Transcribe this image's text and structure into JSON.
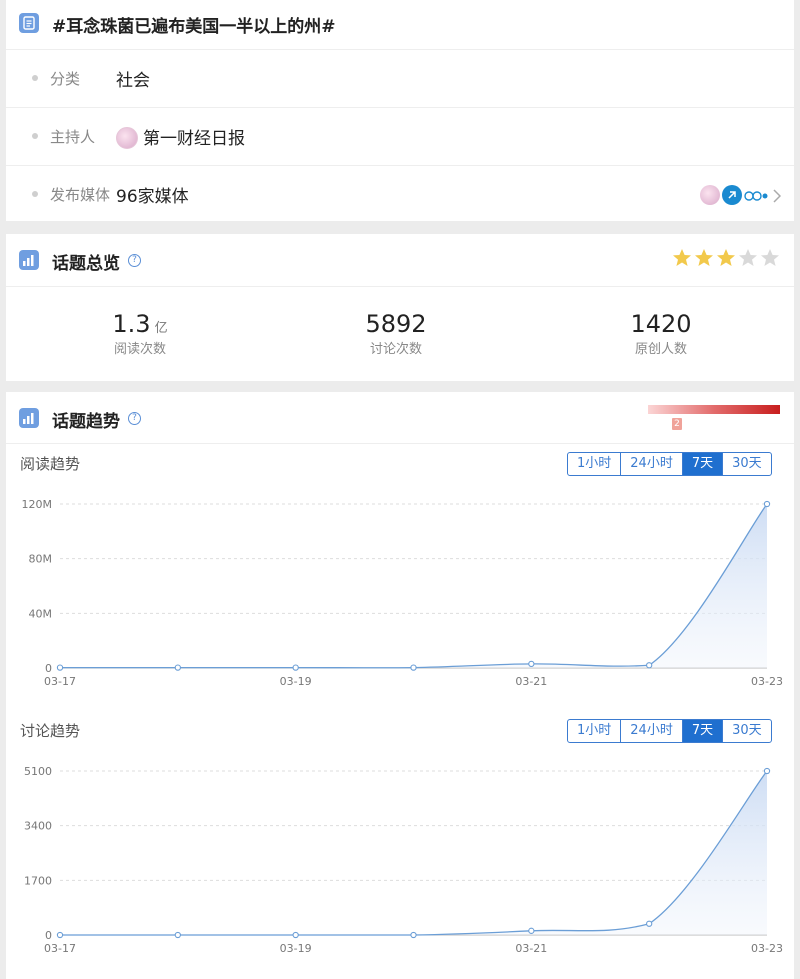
{
  "topic": {
    "title": "#耳念珠菌已遍布美国一半以上的州#",
    "category_label": "分类",
    "category_value": "社会",
    "host_label": "主持人",
    "host_value": "第一财经日报",
    "media_label": "发布媒体",
    "media_value": "96家媒体"
  },
  "overview": {
    "title": "话题总览",
    "help_glyph": "?",
    "rating_stars": 3,
    "rating_max": 5,
    "reads_value": "1.3",
    "reads_unit": "亿",
    "reads_caption": "阅读次数",
    "discussions_value": "5892",
    "discussions_caption": "讨论次数",
    "originals_value": "1420",
    "originals_caption": "原创人数"
  },
  "trend": {
    "title": "话题趋势",
    "help_glyph": "?",
    "heat_badge": "2",
    "reading_title": "阅读趋势",
    "discussion_title": "讨论趋势",
    "ranges": [
      "1小时",
      "24小时",
      "7天",
      "30天"
    ],
    "active_range": "7天"
  },
  "chart_data": [
    {
      "type": "area",
      "x": [
        "03-17",
        "03-18",
        "03-19",
        "03-20",
        "03-21",
        "03-22",
        "03-23"
      ],
      "x_tick_labels": [
        "03-17",
        "03-19",
        "03-21",
        "03-23"
      ],
      "values": [
        0.3,
        0.3,
        0.3,
        0.3,
        3.0,
        2.0,
        120
      ],
      "y_ticks": [
        0,
        40,
        80,
        120
      ],
      "y_tick_labels": [
        "0",
        "40M",
        "80M",
        "120M"
      ],
      "ylim": [
        0,
        120
      ],
      "unit": "M"
    },
    {
      "type": "area",
      "x": [
        "03-17",
        "03-18",
        "03-19",
        "03-20",
        "03-21",
        "03-22",
        "03-23"
      ],
      "x_tick_labels": [
        "03-17",
        "03-19",
        "03-21",
        "03-23"
      ],
      "values": [
        0,
        0,
        0,
        0,
        130,
        350,
        5100
      ],
      "y_ticks": [
        0,
        1700,
        3400,
        5100
      ],
      "y_tick_labels": [
        "0",
        "1700",
        "3400",
        "5100"
      ],
      "ylim": [
        0,
        5100
      ]
    }
  ],
  "colors": {
    "accent": "#1f6fcf",
    "line": "#6b9ed6",
    "star_on": "#f2c94c",
    "star_off": "#d9d9d9"
  }
}
